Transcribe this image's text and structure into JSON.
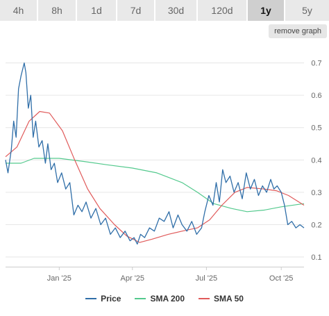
{
  "tabs": [
    {
      "label": "4h",
      "active": false
    },
    {
      "label": "8h",
      "active": false
    },
    {
      "label": "1d",
      "active": false
    },
    {
      "label": "7d",
      "active": false
    },
    {
      "label": "30d",
      "active": false
    },
    {
      "label": "120d",
      "active": false
    },
    {
      "label": "1y",
      "active": true
    },
    {
      "label": "5y",
      "active": false
    }
  ],
  "remove_graph_label": "remove graph",
  "colors": {
    "price": "#2f6ea8",
    "sma200": "#53c98d",
    "sma50": "#e05a5a",
    "grid": "#e6e6e6",
    "axis_text": "#666666"
  },
  "chart_data": {
    "type": "line",
    "title": "",
    "xlabel": "",
    "ylabel": "",
    "ylim": [
      0.07,
      0.77
    ],
    "y_ticks": [
      0.1,
      0.2,
      0.3,
      0.4,
      0.5,
      0.6,
      0.7
    ],
    "x_domain": [
      "2024-10-27",
      "2025-10-29"
    ],
    "x_ticks": [
      {
        "date": "2025-01-01",
        "label": "Jan '25"
      },
      {
        "date": "2025-04-01",
        "label": "Apr '25"
      },
      {
        "date": "2025-07-01",
        "label": "Jul '25"
      },
      {
        "date": "2025-10-01",
        "label": "Oct '25"
      }
    ],
    "grid": true,
    "legend_position": "bottom",
    "series": [
      {
        "name": "Price",
        "points": [
          [
            "2024-10-27",
            0.4
          ],
          [
            "2024-10-30",
            0.36
          ],
          [
            "2024-11-03",
            0.43
          ],
          [
            "2024-11-06",
            0.52
          ],
          [
            "2024-11-09",
            0.47
          ],
          [
            "2024-11-12",
            0.62
          ],
          [
            "2024-11-15",
            0.66
          ],
          [
            "2024-11-19",
            0.7
          ],
          [
            "2024-11-21",
            0.67
          ],
          [
            "2024-11-24",
            0.56
          ],
          [
            "2024-11-27",
            0.6
          ],
          [
            "2024-11-30",
            0.47
          ],
          [
            "2024-12-03",
            0.52
          ],
          [
            "2024-12-07",
            0.44
          ],
          [
            "2024-12-11",
            0.46
          ],
          [
            "2024-12-15",
            0.39
          ],
          [
            "2024-12-18",
            0.45
          ],
          [
            "2024-12-22",
            0.37
          ],
          [
            "2024-12-26",
            0.39
          ],
          [
            "2024-12-30",
            0.33
          ],
          [
            "2025-01-04",
            0.36
          ],
          [
            "2025-01-09",
            0.31
          ],
          [
            "2025-01-14",
            0.33
          ],
          [
            "2025-01-19",
            0.23
          ],
          [
            "2025-01-24",
            0.26
          ],
          [
            "2025-01-29",
            0.24
          ],
          [
            "2025-02-03",
            0.27
          ],
          [
            "2025-02-09",
            0.22
          ],
          [
            "2025-02-15",
            0.25
          ],
          [
            "2025-02-21",
            0.2
          ],
          [
            "2025-02-27",
            0.22
          ],
          [
            "2025-03-05",
            0.17
          ],
          [
            "2025-03-11",
            0.19
          ],
          [
            "2025-03-17",
            0.16
          ],
          [
            "2025-03-23",
            0.18
          ],
          [
            "2025-03-29",
            0.15
          ],
          [
            "2025-04-03",
            0.16
          ],
          [
            "2025-04-07",
            0.14
          ],
          [
            "2025-04-11",
            0.17
          ],
          [
            "2025-04-16",
            0.16
          ],
          [
            "2025-04-22",
            0.19
          ],
          [
            "2025-04-28",
            0.18
          ],
          [
            "2025-05-04",
            0.22
          ],
          [
            "2025-05-10",
            0.21
          ],
          [
            "2025-05-16",
            0.24
          ],
          [
            "2025-05-21",
            0.19
          ],
          [
            "2025-05-27",
            0.23
          ],
          [
            "2025-06-01",
            0.2
          ],
          [
            "2025-06-07",
            0.18
          ],
          [
            "2025-06-13",
            0.21
          ],
          [
            "2025-06-19",
            0.17
          ],
          [
            "2025-06-25",
            0.19
          ],
          [
            "2025-06-29",
            0.24
          ],
          [
            "2025-07-04",
            0.29
          ],
          [
            "2025-07-09",
            0.26
          ],
          [
            "2025-07-13",
            0.33
          ],
          [
            "2025-07-17",
            0.27
          ],
          [
            "2025-07-21",
            0.37
          ],
          [
            "2025-07-25",
            0.33
          ],
          [
            "2025-07-30",
            0.35
          ],
          [
            "2025-08-04",
            0.3
          ],
          [
            "2025-08-09",
            0.33
          ],
          [
            "2025-08-14",
            0.28
          ],
          [
            "2025-08-19",
            0.36
          ],
          [
            "2025-08-24",
            0.31
          ],
          [
            "2025-08-29",
            0.34
          ],
          [
            "2025-09-03",
            0.29
          ],
          [
            "2025-09-08",
            0.32
          ],
          [
            "2025-09-13",
            0.3
          ],
          [
            "2025-09-18",
            0.34
          ],
          [
            "2025-09-22",
            0.31
          ],
          [
            "2025-09-26",
            0.32
          ],
          [
            "2025-10-01",
            0.3
          ],
          [
            "2025-10-05",
            0.26
          ],
          [
            "2025-10-09",
            0.2
          ],
          [
            "2025-10-14",
            0.21
          ],
          [
            "2025-10-19",
            0.19
          ],
          [
            "2025-10-24",
            0.2
          ],
          [
            "2025-10-29",
            0.19
          ]
        ]
      },
      {
        "name": "SMA 200",
        "points": [
          [
            "2024-10-27",
            0.39
          ],
          [
            "2024-11-15",
            0.39
          ],
          [
            "2024-12-01",
            0.405
          ],
          [
            "2025-01-01",
            0.405
          ],
          [
            "2025-02-01",
            0.395
          ],
          [
            "2025-03-01",
            0.385
          ],
          [
            "2025-04-01",
            0.375
          ],
          [
            "2025-05-01",
            0.36
          ],
          [
            "2025-06-01",
            0.33
          ],
          [
            "2025-06-20",
            0.3
          ],
          [
            "2025-07-10",
            0.265
          ],
          [
            "2025-08-01",
            0.25
          ],
          [
            "2025-08-20",
            0.24
          ],
          [
            "2025-09-10",
            0.245
          ],
          [
            "2025-10-01",
            0.255
          ],
          [
            "2025-10-29",
            0.265
          ]
        ]
      },
      {
        "name": "SMA 50",
        "points": [
          [
            "2024-10-27",
            0.41
          ],
          [
            "2024-11-10",
            0.44
          ],
          [
            "2024-11-25",
            0.52
          ],
          [
            "2024-12-08",
            0.55
          ],
          [
            "2024-12-20",
            0.545
          ],
          [
            "2025-01-05",
            0.49
          ],
          [
            "2025-01-20",
            0.4
          ],
          [
            "2025-02-05",
            0.31
          ],
          [
            "2025-02-20",
            0.25
          ],
          [
            "2025-03-10",
            0.2
          ],
          [
            "2025-03-25",
            0.165
          ],
          [
            "2025-04-10",
            0.145
          ],
          [
            "2025-04-25",
            0.155
          ],
          [
            "2025-05-15",
            0.17
          ],
          [
            "2025-06-01",
            0.18
          ],
          [
            "2025-06-20",
            0.19
          ],
          [
            "2025-07-05",
            0.215
          ],
          [
            "2025-07-20",
            0.26
          ],
          [
            "2025-08-05",
            0.3
          ],
          [
            "2025-08-20",
            0.315
          ],
          [
            "2025-09-10",
            0.31
          ],
          [
            "2025-09-25",
            0.305
          ],
          [
            "2025-10-10",
            0.29
          ],
          [
            "2025-10-29",
            0.26
          ]
        ]
      }
    ]
  }
}
